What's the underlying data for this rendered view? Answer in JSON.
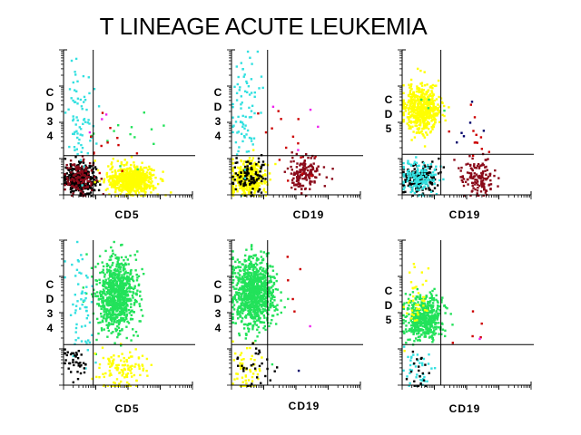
{
  "title": "T LINEAGE ACUTE LEUKEMIA",
  "colors": {
    "black": "#000000",
    "cyan": "#33e0e0",
    "yellow": "#ffff00",
    "green": "#22e25a",
    "darkred": "#8b0a1a",
    "red": "#cc0000",
    "magenta": "#ee22ee",
    "navy": "#00006a"
  },
  "chart_data": [
    {
      "type": "scatter",
      "xlabel": "CD5",
      "ylabel": [
        "C",
        "D",
        "3",
        "4"
      ],
      "xlim": [
        0,
        100
      ],
      "ylim": [
        0,
        100
      ],
      "gates": {
        "x": 23,
        "y": 27
      },
      "populations": [
        {
          "color": "black",
          "n": 320,
          "cx": 12,
          "cy": 12,
          "sx": 6,
          "sy": 5
        },
        {
          "color": "darkred",
          "n": 110,
          "cx": 12,
          "cy": 12,
          "sx": 6,
          "sy": 6
        },
        {
          "color": "yellow",
          "n": 650,
          "cx": 52,
          "cy": 11,
          "sx": 9,
          "sy": 5
        },
        {
          "color": "cyan",
          "n": 70,
          "cx": 12,
          "cy": 55,
          "sx": 6,
          "sy": 20
        },
        {
          "color": "green",
          "n": 14,
          "cx": 55,
          "cy": 45,
          "sx": 15,
          "sy": 12
        },
        {
          "color": "red",
          "n": 12,
          "cx": 35,
          "cy": 42,
          "sx": 10,
          "sy": 12
        },
        {
          "color": "magenta",
          "n": 3,
          "cx": 30,
          "cy": 48,
          "sx": 8,
          "sy": 10
        }
      ]
    },
    {
      "type": "scatter",
      "xlabel": "CD19",
      "ylabel": [
        "C",
        "D",
        "3",
        "4"
      ],
      "xlim": [
        0,
        100
      ],
      "ylim": [
        0,
        100
      ],
      "gates": {
        "x": 28,
        "y": 27
      },
      "populations": [
        {
          "color": "yellow",
          "n": 380,
          "cx": 12,
          "cy": 12,
          "sx": 7,
          "sy": 6
        },
        {
          "color": "black",
          "n": 100,
          "cx": 13,
          "cy": 13,
          "sx": 7,
          "sy": 6
        },
        {
          "color": "darkred",
          "n": 150,
          "cx": 55,
          "cy": 15,
          "sx": 6,
          "sy": 6
        },
        {
          "color": "cyan",
          "n": 80,
          "cx": 10,
          "cy": 60,
          "sx": 6,
          "sy": 20
        },
        {
          "color": "red",
          "n": 15,
          "cx": 45,
          "cy": 40,
          "sx": 12,
          "sy": 15
        },
        {
          "color": "magenta",
          "n": 4,
          "cx": 55,
          "cy": 50,
          "sx": 12,
          "sy": 15
        }
      ]
    },
    {
      "type": "scatter",
      "xlabel": "CD19",
      "ylabel": [
        "C",
        "D",
        "5"
      ],
      "xlim": [
        0,
        100
      ],
      "ylim": [
        0,
        100
      ],
      "gates": {
        "x": 30,
        "y": 28
      },
      "populations": [
        {
          "color": "yellow",
          "n": 520,
          "cx": 15,
          "cy": 60,
          "sx": 7,
          "sy": 8
        },
        {
          "color": "black",
          "n": 180,
          "cx": 12,
          "cy": 12,
          "sx": 7,
          "sy": 5
        },
        {
          "color": "cyan",
          "n": 150,
          "cx": 12,
          "cy": 12,
          "sx": 7,
          "sy": 6
        },
        {
          "color": "darkred",
          "n": 140,
          "cx": 58,
          "cy": 12,
          "sx": 7,
          "sy": 6
        },
        {
          "color": "red",
          "n": 12,
          "cx": 48,
          "cy": 40,
          "sx": 14,
          "sy": 15
        },
        {
          "color": "navy",
          "n": 6,
          "cx": 45,
          "cy": 45,
          "sx": 14,
          "sy": 15
        },
        {
          "color": "green",
          "n": 4,
          "cx": 25,
          "cy": 60,
          "sx": 6,
          "sy": 8
        }
      ]
    },
    {
      "type": "scatter",
      "xlabel": "CD5",
      "ylabel": [
        "C",
        "D",
        "3",
        "4"
      ],
      "xlim": [
        0,
        100
      ],
      "ylim": [
        0,
        100
      ],
      "gates": {
        "x": 23,
        "y": 28
      },
      "populations": [
        {
          "color": "green",
          "n": 800,
          "cx": 40,
          "cy": 63,
          "sx": 8,
          "sy": 13
        },
        {
          "color": "cyan",
          "n": 60,
          "cx": 12,
          "cy": 58,
          "sx": 6,
          "sy": 20
        },
        {
          "color": "yellow",
          "n": 120,
          "cx": 45,
          "cy": 12,
          "sx": 10,
          "sy": 8
        },
        {
          "color": "black",
          "n": 40,
          "cx": 9,
          "cy": 15,
          "sx": 5,
          "sy": 8
        }
      ]
    },
    {
      "type": "scatter",
      "xlabel": "CD19",
      "ylabel": [
        "C",
        "D",
        "3",
        "4"
      ],
      "xlim": [
        0,
        100
      ],
      "ylim": [
        0,
        100
      ],
      "gates": {
        "x": 28,
        "y": 28
      },
      "populations": [
        {
          "color": "green",
          "n": 900,
          "cx": 16,
          "cy": 65,
          "sx": 8,
          "sy": 12
        },
        {
          "color": "yellow",
          "n": 60,
          "cx": 10,
          "cy": 12,
          "sx": 6,
          "sy": 8
        },
        {
          "color": "black",
          "n": 30,
          "cx": 18,
          "cy": 15,
          "sx": 8,
          "sy": 8
        },
        {
          "color": "red",
          "n": 5,
          "cx": 45,
          "cy": 65,
          "sx": 8,
          "sy": 15
        },
        {
          "color": "magenta",
          "n": 1,
          "cx": 58,
          "cy": 40,
          "sx": 2,
          "sy": 2
        },
        {
          "color": "navy",
          "n": 1,
          "cx": 55,
          "cy": 12,
          "sx": 2,
          "sy": 2
        }
      ]
    },
    {
      "type": "scatter",
      "xlabel": "CD19",
      "ylabel": [
        "C",
        "D",
        "5"
      ],
      "xlim": [
        0,
        100
      ],
      "ylim": [
        0,
        100
      ],
      "gates": {
        "x": 30,
        "y": 28
      },
      "populations": [
        {
          "color": "green",
          "n": 500,
          "cx": 16,
          "cy": 47,
          "sx": 7,
          "sy": 8
        },
        {
          "color": "yellow",
          "n": 40,
          "cx": 10,
          "cy": 60,
          "sx": 5,
          "sy": 10
        },
        {
          "color": "cyan",
          "n": 40,
          "cx": 10,
          "cy": 12,
          "sx": 6,
          "sy": 8
        },
        {
          "color": "black",
          "n": 20,
          "cx": 12,
          "cy": 12,
          "sx": 6,
          "sy": 8
        },
        {
          "color": "red",
          "n": 5,
          "cx": 50,
          "cy": 40,
          "sx": 12,
          "sy": 8
        },
        {
          "color": "magenta",
          "n": 1,
          "cx": 60,
          "cy": 30,
          "sx": 2,
          "sy": 2
        }
      ]
    }
  ]
}
